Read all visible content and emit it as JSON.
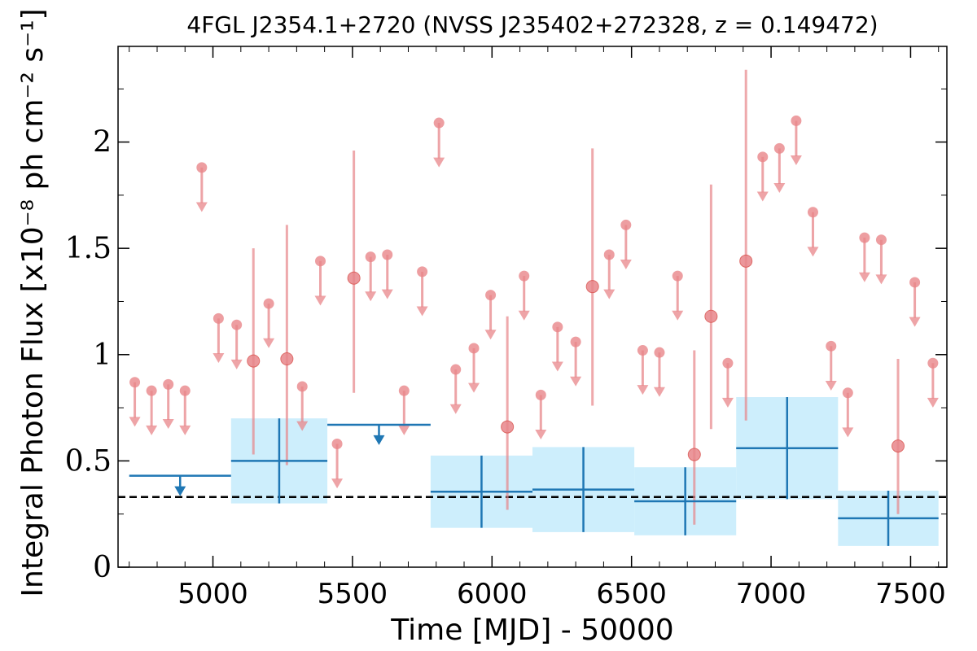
{
  "chart_data": {
    "type": "scatter",
    "title": "4FGL J2354.1+2720 (NVSS J235402+272328, z = 0.149472)",
    "xlabel": "Time [MJD] - 50000",
    "ylabel": "Integral Photon Flux [x10⁻⁸ ph cm⁻² s⁻¹]",
    "xlim": [
      4660,
      7630
    ],
    "ylim": [
      0,
      2.45
    ],
    "x_ticks": [
      "5000",
      "5500",
      "6000",
      "6500",
      "7000",
      "7500"
    ],
    "y_ticks": [
      "0",
      "0.5",
      "1",
      "1.5",
      "2"
    ],
    "x_tick_values": [
      5000,
      5500,
      6000,
      6500,
      7000,
      7500
    ],
    "y_tick_values": [
      0,
      0.5,
      1,
      1.5,
      2
    ],
    "reference_line": 0.33,
    "colors": {
      "long_bins": "#1f77b4",
      "long_band": "#cdeefc",
      "short_bins": "#e8868a",
      "reference": "#000000"
    },
    "long_bins": [
      {
        "x0": 4700,
        "x1": 5065,
        "upper_limit": true,
        "value": 0.43,
        "err": 0
      },
      {
        "x0": 5065,
        "x1": 5410,
        "upper_limit": false,
        "value": 0.5,
        "err": 0.2
      },
      {
        "x0": 5410,
        "x1": 5780,
        "upper_limit": true,
        "value": 0.67,
        "err": 0
      },
      {
        "x0": 5780,
        "x1": 6145,
        "upper_limit": false,
        "value": 0.355,
        "err": 0.17
      },
      {
        "x0": 6145,
        "x1": 6510,
        "upper_limit": false,
        "value": 0.365,
        "err": 0.2
      },
      {
        "x0": 6510,
        "x1": 6875,
        "upper_limit": false,
        "value": 0.31,
        "err": 0.16
      },
      {
        "x0": 6875,
        "x1": 7240,
        "upper_limit": false,
        "value": 0.56,
        "err": 0.24
      },
      {
        "x0": 7240,
        "x1": 7600,
        "upper_limit": false,
        "value": 0.23,
        "err": 0.13
      }
    ],
    "short_bins": [
      {
        "x": 4720,
        "value": 0.87,
        "upper_limit": true
      },
      {
        "x": 4780,
        "value": 0.83,
        "upper_limit": true
      },
      {
        "x": 4840,
        "value": 0.86,
        "upper_limit": true
      },
      {
        "x": 4900,
        "value": 0.83,
        "upper_limit": true
      },
      {
        "x": 4960,
        "value": 1.88,
        "upper_limit": true
      },
      {
        "x": 5020,
        "value": 1.17,
        "upper_limit": true
      },
      {
        "x": 5085,
        "value": 1.14,
        "upper_limit": true
      },
      {
        "x": 5145,
        "value": 0.97,
        "upper_limit": false,
        "lo": 0.53,
        "hi": 1.5
      },
      {
        "x": 5200,
        "value": 1.24,
        "upper_limit": true
      },
      {
        "x": 5265,
        "value": 0.98,
        "upper_limit": false,
        "lo": 0.48,
        "hi": 1.61
      },
      {
        "x": 5320,
        "value": 0.85,
        "upper_limit": true
      },
      {
        "x": 5385,
        "value": 1.44,
        "upper_limit": true
      },
      {
        "x": 5445,
        "value": 0.58,
        "upper_limit": true
      },
      {
        "x": 5505,
        "value": 1.36,
        "upper_limit": false,
        "lo": 0.82,
        "hi": 1.96
      },
      {
        "x": 5565,
        "value": 1.46,
        "upper_limit": true
      },
      {
        "x": 5625,
        "value": 1.47,
        "upper_limit": true
      },
      {
        "x": 5685,
        "value": 0.83,
        "upper_limit": true
      },
      {
        "x": 5750,
        "value": 1.39,
        "upper_limit": true
      },
      {
        "x": 5810,
        "value": 2.09,
        "upper_limit": true
      },
      {
        "x": 5870,
        "value": 0.93,
        "upper_limit": true
      },
      {
        "x": 5935,
        "value": 1.03,
        "upper_limit": true
      },
      {
        "x": 5995,
        "value": 1.28,
        "upper_limit": true
      },
      {
        "x": 6055,
        "value": 0.66,
        "upper_limit": false,
        "lo": 0.27,
        "hi": 1.18
      },
      {
        "x": 6115,
        "value": 1.37,
        "upper_limit": true
      },
      {
        "x": 6175,
        "value": 0.81,
        "upper_limit": true
      },
      {
        "x": 6235,
        "value": 1.13,
        "upper_limit": true
      },
      {
        "x": 6300,
        "value": 1.06,
        "upper_limit": true
      },
      {
        "x": 6360,
        "value": 1.32,
        "upper_limit": false,
        "lo": 0.76,
        "hi": 1.97
      },
      {
        "x": 6420,
        "value": 1.47,
        "upper_limit": true
      },
      {
        "x": 6480,
        "value": 1.61,
        "upper_limit": true
      },
      {
        "x": 6540,
        "value": 1.02,
        "upper_limit": true
      },
      {
        "x": 6600,
        "value": 1.01,
        "upper_limit": true
      },
      {
        "x": 6665,
        "value": 1.37,
        "upper_limit": true
      },
      {
        "x": 6725,
        "value": 0.53,
        "upper_limit": false,
        "lo": 0.2,
        "hi": 1.02
      },
      {
        "x": 6785,
        "value": 1.18,
        "upper_limit": false,
        "lo": 0.65,
        "hi": 1.8
      },
      {
        "x": 6845,
        "value": 0.96,
        "upper_limit": true
      },
      {
        "x": 6910,
        "value": 1.44,
        "upper_limit": false,
        "lo": 0.69,
        "hi": 2.34
      },
      {
        "x": 6970,
        "value": 1.93,
        "upper_limit": true
      },
      {
        "x": 7030,
        "value": 1.97,
        "upper_limit": true
      },
      {
        "x": 7090,
        "value": 2.1,
        "upper_limit": true
      },
      {
        "x": 7150,
        "value": 1.67,
        "upper_limit": true
      },
      {
        "x": 7215,
        "value": 1.04,
        "upper_limit": true
      },
      {
        "x": 7275,
        "value": 0.82,
        "upper_limit": true
      },
      {
        "x": 7335,
        "value": 1.55,
        "upper_limit": true
      },
      {
        "x": 7395,
        "value": 1.54,
        "upper_limit": true
      },
      {
        "x": 7455,
        "value": 0.57,
        "upper_limit": false,
        "lo": 0.25,
        "hi": 0.98
      },
      {
        "x": 7515,
        "value": 1.34,
        "upper_limit": true
      },
      {
        "x": 7580,
        "value": 0.96,
        "upper_limit": true
      }
    ]
  }
}
